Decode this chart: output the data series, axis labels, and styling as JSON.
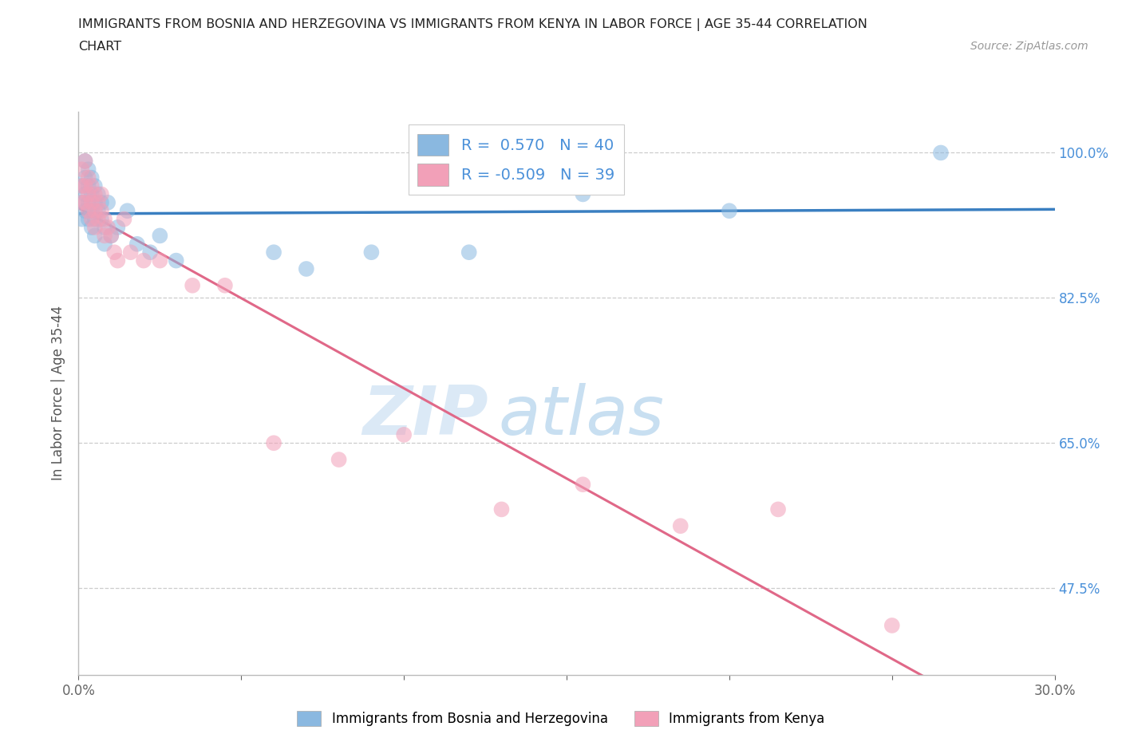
{
  "title_line1": "IMMIGRANTS FROM BOSNIA AND HERZEGOVINA VS IMMIGRANTS FROM KENYA IN LABOR FORCE | AGE 35-44 CORRELATION",
  "title_line2": "CHART",
  "source_text": "Source: ZipAtlas.com",
  "xlabel_bosnia": "Immigrants from Bosnia and Herzegovina",
  "xlabel_kenya": "Immigrants from Kenya",
  "ylabel": "In Labor Force | Age 35-44",
  "xlim": [
    0.0,
    0.3
  ],
  "ylim": [
    0.37,
    1.05
  ],
  "xticks": [
    0.0,
    0.05,
    0.1,
    0.15,
    0.2,
    0.25,
    0.3
  ],
  "xticklabels": [
    "0.0%",
    "",
    "",
    "",
    "",
    "",
    "30.0%"
  ],
  "yticks": [
    0.475,
    0.65,
    0.825,
    1.0
  ],
  "yticklabels": [
    "47.5%",
    "65.0%",
    "82.5%",
    "100.0%"
  ],
  "r_bosnia": 0.57,
  "n_bosnia": 40,
  "r_kenya": -0.509,
  "n_kenya": 39,
  "color_bosnia": "#8ab8e0",
  "color_kenya": "#f2a0b8",
  "line_color_bosnia": "#3a7fc1",
  "line_color_kenya": "#e06888",
  "bosnia_x": [
    0.001,
    0.001,
    0.001,
    0.002,
    0.002,
    0.002,
    0.002,
    0.003,
    0.003,
    0.003,
    0.003,
    0.004,
    0.004,
    0.004,
    0.004,
    0.005,
    0.005,
    0.005,
    0.005,
    0.006,
    0.006,
    0.007,
    0.007,
    0.008,
    0.008,
    0.009,
    0.01,
    0.012,
    0.015,
    0.018,
    0.022,
    0.025,
    0.03,
    0.06,
    0.07,
    0.09,
    0.12,
    0.155,
    0.2,
    0.265
  ],
  "bosnia_y": [
    0.96,
    0.94,
    0.92,
    0.99,
    0.97,
    0.95,
    0.93,
    0.98,
    0.96,
    0.94,
    0.92,
    0.97,
    0.95,
    0.93,
    0.91,
    0.96,
    0.94,
    0.92,
    0.9,
    0.95,
    0.93,
    0.94,
    0.92,
    0.91,
    0.89,
    0.94,
    0.9,
    0.91,
    0.93,
    0.89,
    0.88,
    0.9,
    0.87,
    0.88,
    0.86,
    0.88,
    0.88,
    0.95,
    0.93,
    1.0
  ],
  "kenya_x": [
    0.001,
    0.001,
    0.001,
    0.002,
    0.002,
    0.002,
    0.003,
    0.003,
    0.003,
    0.004,
    0.004,
    0.004,
    0.005,
    0.005,
    0.005,
    0.006,
    0.006,
    0.007,
    0.007,
    0.008,
    0.008,
    0.009,
    0.01,
    0.011,
    0.012,
    0.014,
    0.016,
    0.02,
    0.025,
    0.035,
    0.045,
    0.06,
    0.08,
    0.1,
    0.13,
    0.155,
    0.185,
    0.215,
    0.25
  ],
  "kenya_y": [
    0.98,
    0.96,
    0.94,
    0.99,
    0.96,
    0.94,
    0.97,
    0.95,
    0.93,
    0.96,
    0.94,
    0.92,
    0.95,
    0.93,
    0.91,
    0.94,
    0.92,
    0.95,
    0.93,
    0.92,
    0.9,
    0.91,
    0.9,
    0.88,
    0.87,
    0.92,
    0.88,
    0.87,
    0.87,
    0.84,
    0.84,
    0.65,
    0.63,
    0.66,
    0.57,
    0.6,
    0.55,
    0.57,
    0.43
  ]
}
